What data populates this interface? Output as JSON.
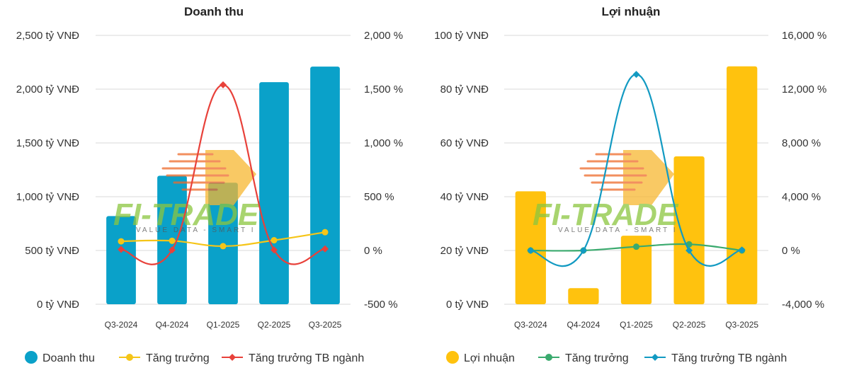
{
  "colors": {
    "revenue_bar": "#0aa1c9",
    "revenue_growth": "#f5c518",
    "revenue_industry": "#e8413a",
    "profit_bar": "#ffc20e",
    "profit_growth": "#3aaa6e",
    "profit_industry": "#129ac2"
  },
  "watermark": {
    "brand": "FI-TRADE",
    "tagline": "VALUE DATA - SMART I"
  },
  "chart_data": [
    {
      "type": "bar",
      "title": "Doanh thu",
      "categories": [
        "Q3-2024",
        "Q4-2024",
        "Q1-2025",
        "Q2-2025",
        "Q3-2025"
      ],
      "ylim": [
        0,
        2500
      ],
      "y2lim": [
        -500,
        2000
      ],
      "yticks": [
        "0 tỷ VNĐ",
        "500 tỷ VNĐ",
        "1,000 tỷ VNĐ",
        "1,500 tỷ VNĐ",
        "2,000 tỷ VNĐ",
        "2,500 tỷ VNĐ"
      ],
      "y2ticks": [
        "-500 %",
        "0 %",
        "500 %",
        "1,000 %",
        "1,500 %",
        "2,000 %"
      ],
      "series": [
        {
          "name": "Doanh thu",
          "kind": "bar",
          "axis": "left",
          "values": [
            820,
            1195,
            1130,
            2065,
            2210
          ]
        },
        {
          "name": "Tăng trưởng",
          "kind": "line",
          "axis": "right",
          "values": [
            85,
            90,
            40,
            95,
            170
          ]
        },
        {
          "name": "Tăng trưởng TB ngành",
          "kind": "line",
          "axis": "right",
          "values": [
            10,
            5,
            1540,
            5,
            15
          ]
        }
      ],
      "legend": [
        "Doanh thu",
        "Tăng trưởng",
        "Tăng trưởng TB ngành"
      ]
    },
    {
      "type": "bar",
      "title": "Lợi nhuận",
      "categories": [
        "Q3-2024",
        "Q4-2024",
        "Q1-2025",
        "Q2-2025",
        "Q3-2025"
      ],
      "ylim": [
        0,
        100
      ],
      "y2lim": [
        -4000,
        16000
      ],
      "yticks": [
        "0 tỷ VNĐ",
        "20 tỷ VNĐ",
        "40 tỷ VNĐ",
        "60 tỷ VNĐ",
        "80 tỷ VNĐ",
        "100 tỷ VNĐ"
      ],
      "y2ticks": [
        "-4,000 %",
        "0 %",
        "4,000 %",
        "8,000 %",
        "12,000 %",
        "16,000 %"
      ],
      "series": [
        {
          "name": "Lợi nhuận",
          "kind": "bar",
          "axis": "left",
          "values": [
            42,
            6,
            25.5,
            55,
            88.5
          ]
        },
        {
          "name": "Tăng trưởng",
          "kind": "line",
          "axis": "right",
          "values": [
            0,
            0,
            280,
            460,
            0
          ]
        },
        {
          "name": "Tăng trưởng TB ngành",
          "kind": "line",
          "axis": "right",
          "values": [
            0,
            0,
            13100,
            0,
            40
          ]
        }
      ],
      "legend": [
        "Lợi nhuận",
        "Tăng trưởng",
        "Tăng trưởng TB ngành"
      ]
    }
  ]
}
